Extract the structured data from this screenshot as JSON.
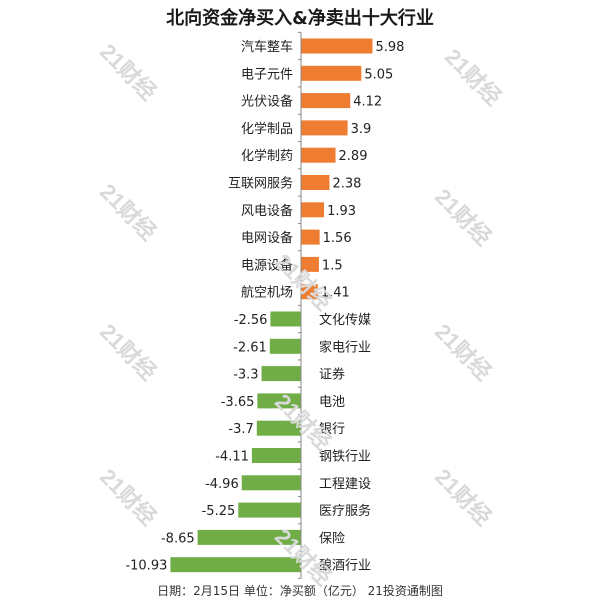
{
  "title": "北向资金净买入&净卖出十大行业",
  "footer": "日期：2月15日 单位：净买额（亿元） 21投资通制图",
  "watermark_text": "21财经",
  "colors": {
    "positive": "#ef7d31",
    "negative": "#70ad47",
    "axis": "#888888"
  },
  "chart_data": {
    "type": "bar",
    "orientation": "horizontal",
    "title": "北向资金净买入&净卖出十大行业",
    "categories": [
      "汽车整车",
      "电子元件",
      "光伏设备",
      "化学制品",
      "化学制药",
      "互联网服务",
      "风电设备",
      "电网设备",
      "电源设备",
      "航空机场",
      "文化传媒",
      "家电行业",
      "证券",
      "电池",
      "银行",
      "钢铁行业",
      "工程建设",
      "医疗服务",
      "保险",
      "酿酒行业"
    ],
    "values": [
      5.98,
      5.05,
      4.12,
      3.9,
      2.89,
      2.38,
      1.93,
      1.56,
      1.5,
      1.41,
      -2.56,
      -2.61,
      -3.3,
      -3.65,
      -3.7,
      -4.11,
      -4.96,
      -5.25,
      -8.65,
      -10.93
    ],
    "value_labels": [
      "5.98",
      "5.05",
      "4.12",
      "3.9",
      "2.89",
      "2.38",
      "1.93",
      "1.56",
      "1.5",
      "1.41",
      "-2.56",
      "-2.61",
      "-3.3",
      "-3.65",
      "-3.7",
      "-4.11",
      "-4.96",
      "-5.25",
      "-8.65",
      "-10.93"
    ],
    "xlim": [
      -10.93,
      5.98
    ],
    "grid": false,
    "legend": "none"
  }
}
